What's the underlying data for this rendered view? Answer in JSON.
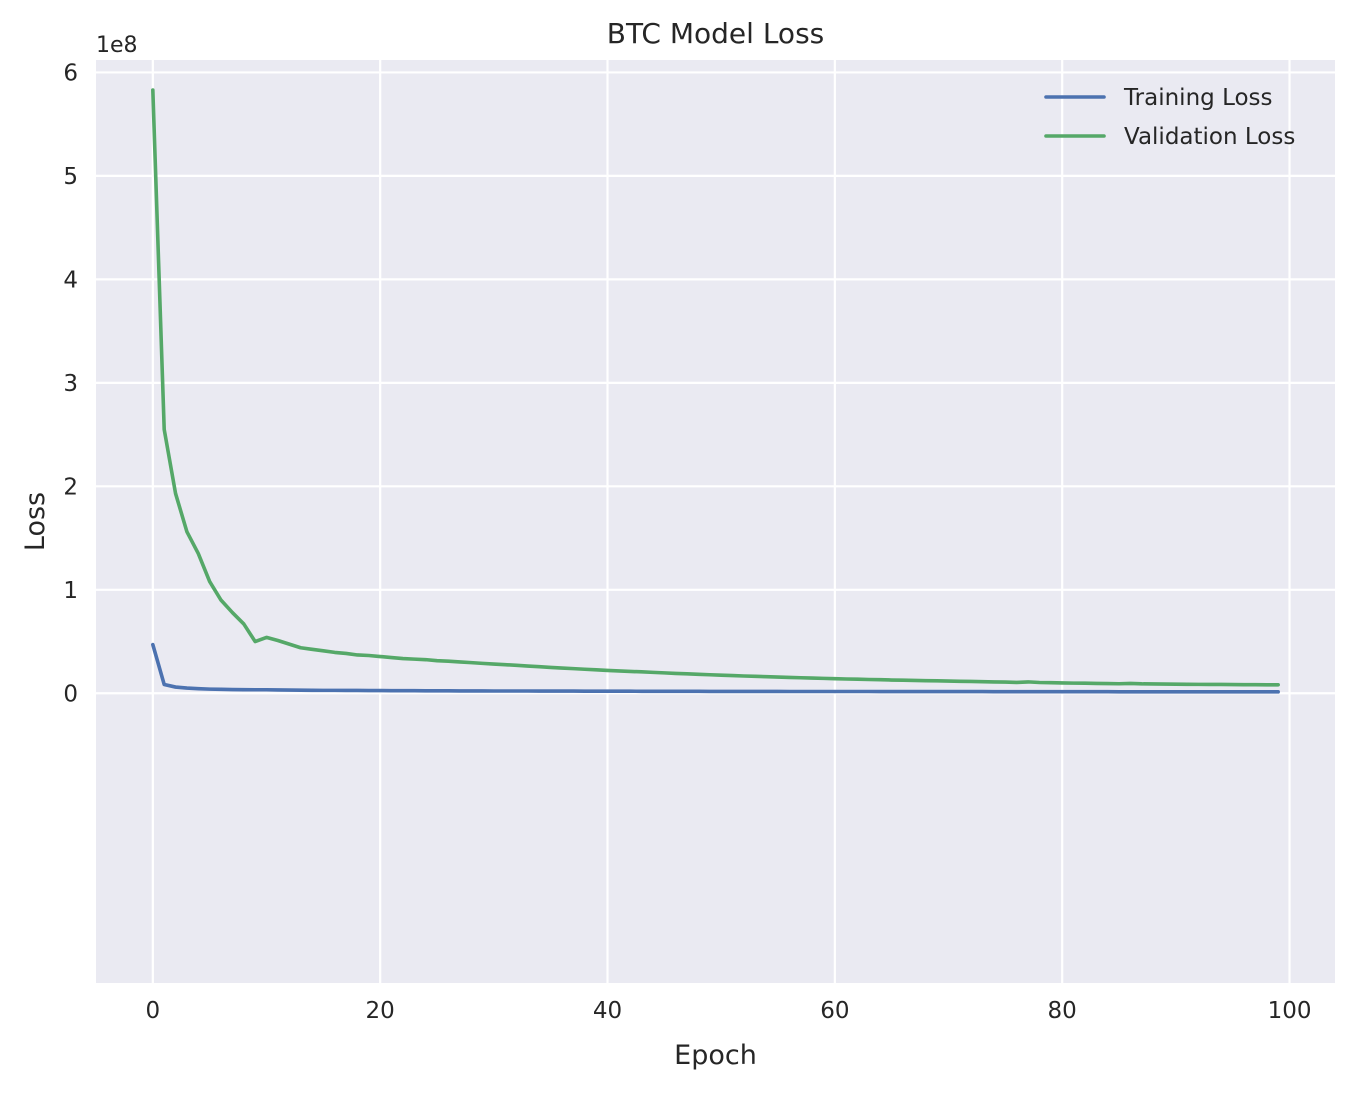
{
  "chart_data": {
    "type": "line",
    "title": "BTC Model Loss",
    "xlabel": "Epoch",
    "ylabel": "Loss",
    "y_offset_label": "1e8",
    "xlim": [
      -5,
      104
    ],
    "ylim": [
      -2.8,
      6.12
    ],
    "xticks": [
      0,
      20,
      40,
      60,
      80,
      100
    ],
    "xtick_labels": [
      "0",
      "20",
      "40",
      "60",
      "80",
      "100"
    ],
    "yticks": [
      0,
      1,
      2,
      3,
      4,
      5,
      6
    ],
    "ytick_labels": [
      "0",
      "1",
      "2",
      "3",
      "4",
      "5",
      "6"
    ],
    "y_scale_note": "values in units of 1e8",
    "grid": true,
    "legend_position": "upper right",
    "series": [
      {
        "name": "Training Loss",
        "color": "#4c72b0",
        "x": [
          0,
          1,
          2,
          3,
          4,
          5,
          6,
          7,
          8,
          9,
          10,
          11,
          12,
          13,
          14,
          15,
          16,
          17,
          18,
          19,
          20,
          21,
          22,
          23,
          24,
          25,
          26,
          27,
          28,
          29,
          30,
          31,
          32,
          33,
          34,
          35,
          36,
          37,
          38,
          39,
          40,
          41,
          42,
          43,
          44,
          45,
          46,
          47,
          48,
          49,
          50,
          51,
          52,
          53,
          54,
          55,
          56,
          57,
          58,
          59,
          60,
          61,
          62,
          63,
          64,
          65,
          66,
          67,
          68,
          69,
          70,
          71,
          72,
          73,
          74,
          75,
          76,
          77,
          78,
          79,
          80,
          81,
          82,
          83,
          84,
          85,
          86,
          87,
          88,
          89,
          90,
          91,
          92,
          93,
          94,
          95,
          96,
          97,
          98,
          99
        ],
        "values": [
          0.47,
          0.085,
          0.06,
          0.05,
          0.044,
          0.04,
          0.038,
          0.036,
          0.035,
          0.034,
          0.034,
          0.032,
          0.031,
          0.03,
          0.029,
          0.028,
          0.028,
          0.027,
          0.027,
          0.026,
          0.026,
          0.025,
          0.025,
          0.025,
          0.024,
          0.024,
          0.024,
          0.023,
          0.023,
          0.023,
          0.022,
          0.022,
          0.022,
          0.022,
          0.021,
          0.021,
          0.021,
          0.021,
          0.02,
          0.02,
          0.02,
          0.02,
          0.02,
          0.019,
          0.019,
          0.019,
          0.019,
          0.019,
          0.019,
          0.018,
          0.018,
          0.018,
          0.018,
          0.018,
          0.018,
          0.018,
          0.017,
          0.017,
          0.017,
          0.017,
          0.017,
          0.017,
          0.017,
          0.017,
          0.016,
          0.016,
          0.016,
          0.016,
          0.016,
          0.016,
          0.016,
          0.016,
          0.016,
          0.016,
          0.015,
          0.015,
          0.015,
          0.015,
          0.015,
          0.015,
          0.015,
          0.015,
          0.015,
          0.015,
          0.015,
          0.014,
          0.014,
          0.014,
          0.014,
          0.014,
          0.014,
          0.014,
          0.014,
          0.014,
          0.014,
          0.014,
          0.014,
          0.014,
          0.014,
          0.014
        ]
      },
      {
        "name": "Validation Loss",
        "color": "#55a868",
        "x": [
          0,
          1,
          2,
          3,
          4,
          5,
          6,
          7,
          8,
          9,
          10,
          11,
          12,
          13,
          14,
          15,
          16,
          17,
          18,
          19,
          20,
          21,
          22,
          23,
          24,
          25,
          26,
          27,
          28,
          29,
          30,
          31,
          32,
          33,
          34,
          35,
          36,
          37,
          38,
          39,
          40,
          41,
          42,
          43,
          44,
          45,
          46,
          47,
          48,
          49,
          50,
          51,
          52,
          53,
          54,
          55,
          56,
          57,
          58,
          59,
          60,
          61,
          62,
          63,
          64,
          65,
          66,
          67,
          68,
          69,
          70,
          71,
          72,
          73,
          74,
          75,
          76,
          77,
          78,
          79,
          80,
          81,
          82,
          83,
          84,
          85,
          86,
          87,
          88,
          89,
          90,
          91,
          92,
          93,
          94,
          95,
          96,
          97,
          98,
          99
        ],
        "values": [
          5.83,
          2.55,
          1.93,
          1.56,
          1.35,
          1.08,
          0.9,
          0.78,
          0.67,
          0.5,
          0.54,
          0.51,
          0.475,
          0.44,
          0.425,
          0.41,
          0.395,
          0.385,
          0.37,
          0.365,
          0.355,
          0.345,
          0.335,
          0.33,
          0.325,
          0.315,
          0.31,
          0.303,
          0.296,
          0.289,
          0.282,
          0.276,
          0.27,
          0.263,
          0.257,
          0.25,
          0.244,
          0.238,
          0.232,
          0.227,
          0.221,
          0.216,
          0.211,
          0.207,
          0.202,
          0.197,
          0.192,
          0.188,
          0.183,
          0.179,
          0.175,
          0.171,
          0.167,
          0.164,
          0.16,
          0.157,
          0.153,
          0.15,
          0.147,
          0.144,
          0.141,
          0.138,
          0.136,
          0.133,
          0.131,
          0.128,
          0.126,
          0.124,
          0.122,
          0.12,
          0.118,
          0.116,
          0.114,
          0.112,
          0.11,
          0.108,
          0.105,
          0.11,
          0.104,
          0.102,
          0.1,
          0.098,
          0.097,
          0.095,
          0.094,
          0.092,
          0.095,
          0.091,
          0.09,
          0.089,
          0.088,
          0.087,
          0.086,
          0.085,
          0.085,
          0.084,
          0.083,
          0.083,
          0.082,
          0.082
        ]
      }
    ]
  }
}
